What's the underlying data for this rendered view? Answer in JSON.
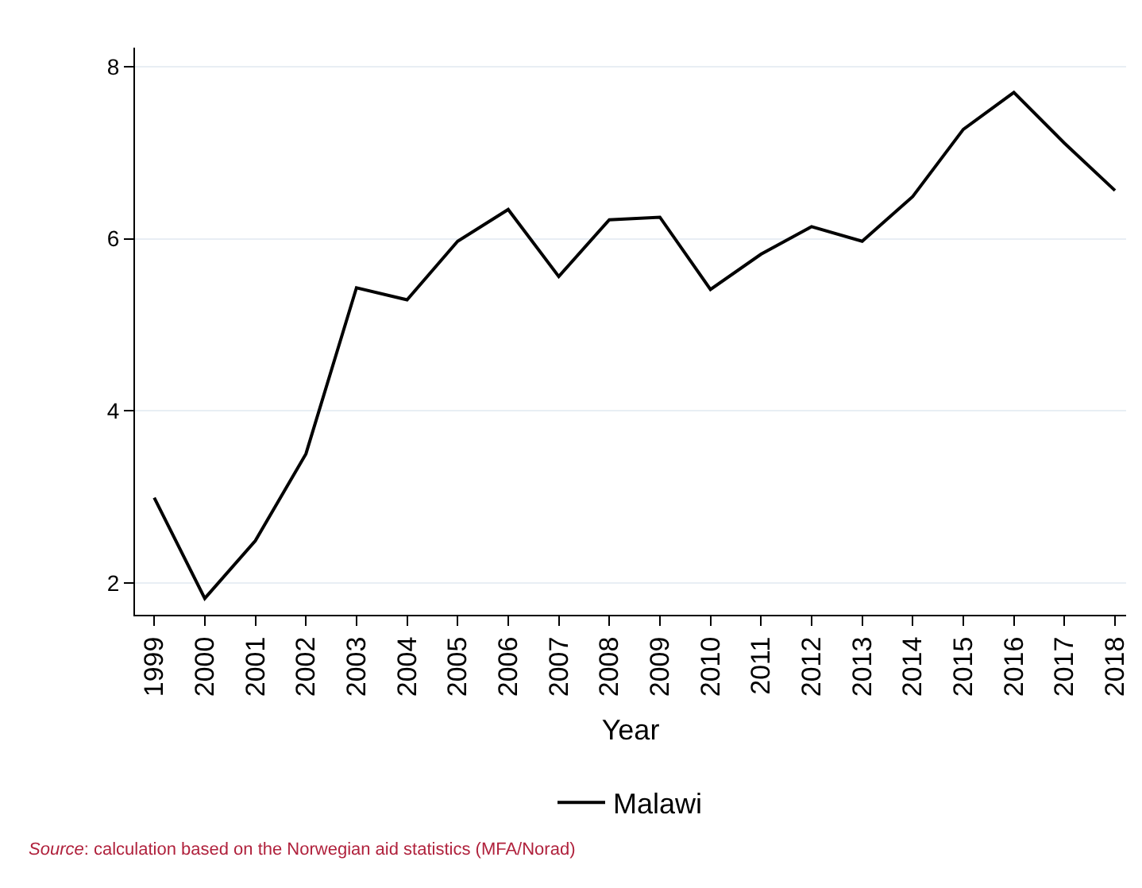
{
  "chart_data": {
    "type": "line",
    "x": [
      1999,
      2000,
      2001,
      2002,
      2003,
      2004,
      2005,
      2006,
      2007,
      2008,
      2009,
      2010,
      2011,
      2012,
      2013,
      2014,
      2015,
      2016,
      2017,
      2018
    ],
    "series": [
      {
        "name": "Malawi",
        "color": "#000000",
        "values": [
          2.99,
          1.82,
          2.49,
          3.5,
          5.43,
          5.29,
          5.97,
          6.34,
          5.56,
          6.22,
          6.25,
          5.41,
          5.82,
          6.14,
          5.97,
          6.49,
          7.27,
          7.7,
          7.11,
          6.56
        ]
      }
    ],
    "xlabel": "Year",
    "xlim": [
      1998.62,
      2018.22
    ],
    "xticks": [
      1999,
      2000,
      2001,
      2002,
      2003,
      2004,
      2005,
      2006,
      2007,
      2008,
      2009,
      2010,
      2011,
      2012,
      2013,
      2014,
      2015,
      2016,
      2017,
      2018
    ],
    "ylim": [
      1.63,
      8.22
    ],
    "yticks": [
      2,
      4,
      6,
      8
    ],
    "grid": "y",
    "legend": "bottom",
    "marker": "none",
    "line_style": "solid",
    "annotations": [
      "Source: calculation based on the Norwegian aid statistics (MFA/Norad)"
    ]
  }
}
